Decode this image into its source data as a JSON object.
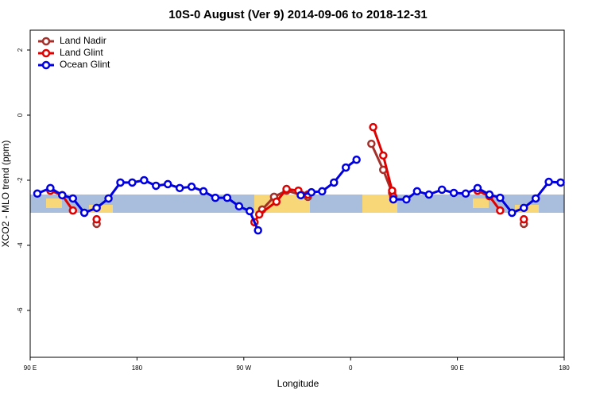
{
  "chart_data": {
    "type": "line",
    "title": "10S-0 August (Ver 9)   2014-09-06 to 2018-12-31",
    "x_label": "Longitude",
    "y_label": "XCO2 - MLO trend (ppm)",
    "xlim": [
      90,
      540
    ],
    "xticks": [
      {
        "value": 90,
        "label": "90 E"
      },
      180,
      {
        "value": 270,
        "label": "90 W"
      },
      {
        "value": 360,
        "label": "0"
      },
      {
        "value": 450,
        "label": "90 E"
      },
      {
        "value": 540,
        "label": "180"
      }
    ],
    "ylim": [
      -7.44,
      2.61
    ],
    "yticks": [
      -6,
      -4,
      -2,
      0,
      2
    ],
    "legend": "top-left",
    "series": [
      {
        "name": "Land Nadir",
        "color": "#a3302a",
        "x": [
          146,
          null,
          285.5,
          295.5,
          306,
          324,
          null,
          377.5,
          387.5,
          395,
          null,
          506
        ],
        "values": [
          -3.34,
          null,
          -2.9,
          -2.51,
          -2.32,
          -2.51,
          null,
          -0.88,
          -1.68,
          -2.39,
          null,
          -3.34
        ]
      },
      {
        "name": "Land Glint",
        "color": "#e00000",
        "x": [
          107,
          117,
          126,
          null,
          146,
          null,
          279,
          283,
          297.5,
          306,
          316,
          324,
          null,
          379,
          387.5,
          395,
          396,
          null,
          467,
          477,
          486,
          null,
          506
        ],
        "values": [
          -2.32,
          -2.46,
          -2.93,
          null,
          -3.2,
          null,
          -3.29,
          -3.05,
          -2.66,
          -2.27,
          -2.32,
          -2.44,
          null,
          -0.37,
          -1.24,
          -2.32,
          -2.51,
          null,
          -2.32,
          -2.49,
          -2.93,
          null,
          -3.2
        ]
      },
      {
        "name": "Ocean Glint",
        "color": "#0000e0",
        "x": [
          96,
          107,
          117,
          126,
          135.6,
          146,
          156,
          166,
          176,
          186,
          196,
          206,
          216,
          226,
          236,
          246,
          256,
          266,
          275,
          282,
          null,
          318,
          327,
          336,
          346,
          356,
          365,
          null,
          396,
          407,
          416,
          426,
          437,
          447,
          457,
          467,
          477,
          486,
          496,
          506,
          516,
          527,
          537
        ],
        "values": [
          -2.41,
          -2.24,
          -2.46,
          -2.56,
          -3.0,
          -2.85,
          -2.56,
          -2.07,
          -2.07,
          -2.0,
          -2.17,
          -2.12,
          -2.24,
          -2.2,
          -2.34,
          -2.54,
          -2.54,
          -2.8,
          -2.95,
          -3.54,
          null,
          -2.46,
          -2.37,
          -2.34,
          -2.07,
          -1.61,
          -1.37,
          null,
          -2.59,
          -2.59,
          -2.34,
          -2.44,
          -2.29,
          -2.39,
          -2.41,
          -2.24,
          -2.44,
          -2.54,
          -3.0,
          -2.85,
          -2.56,
          -2.05,
          -2.07
        ]
      }
    ]
  }
}
